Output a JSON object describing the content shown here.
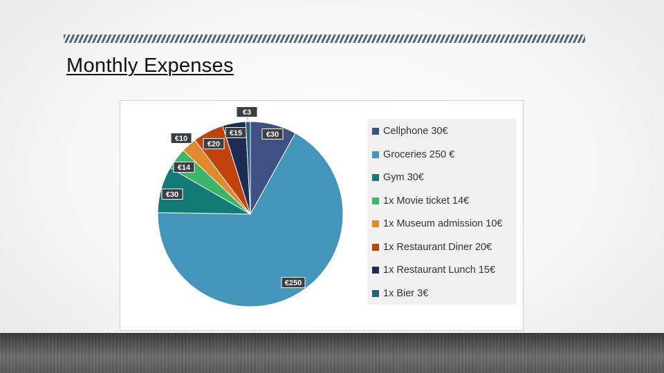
{
  "slide": {
    "title": "Monthly Expenses"
  },
  "chart_data": {
    "type": "pie",
    "categories": [
      "Cellphone 30€",
      "Groceries 250 €",
      "Gym 30€",
      "1x Movie ticket 14€",
      "1x Museum admission 10€",
      "1x Restaurant Diner 20€",
      "1x Restaurant Lunch 15€",
      "1x Bier 3€"
    ],
    "values": [
      30,
      250,
      30,
      14,
      10,
      20,
      15,
      3
    ],
    "data_labels": [
      "€30",
      "€250",
      "€30",
      "€14",
      "€10",
      "€20",
      "€15",
      "€3"
    ],
    "colors": [
      "#3e5084",
      "#4395b9",
      "#127b76",
      "#3bb56a",
      "#e3892d",
      "#c2420e",
      "#1e2b52",
      "#26607a"
    ],
    "legend_position": "right",
    "title": ""
  }
}
